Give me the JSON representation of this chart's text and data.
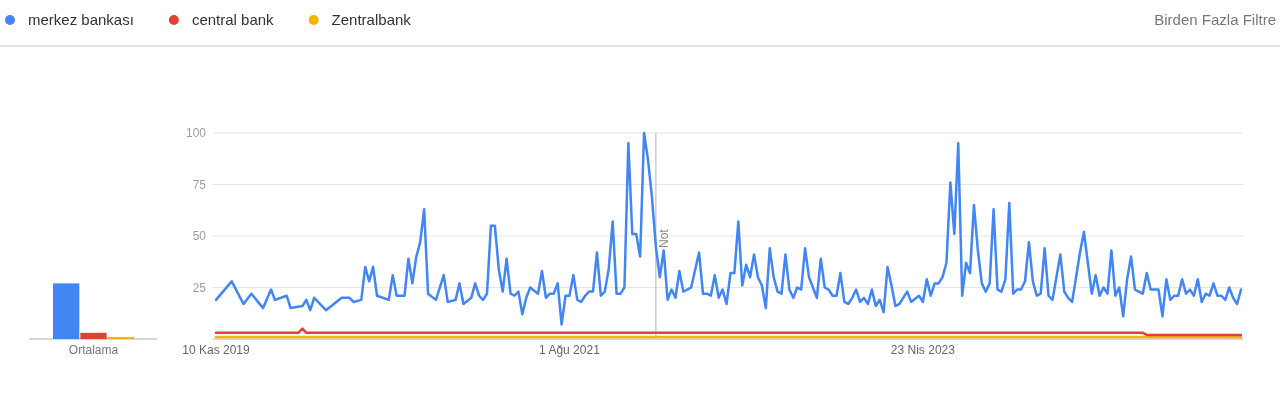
{
  "chart_data": [
    {
      "type": "bar",
      "categories": [
        "Ortalama"
      ],
      "ylim": [
        0,
        100
      ],
      "tick_labels": "x",
      "series": [
        {
          "color": "#4285f4",
          "values": [
            27
          ]
        },
        {
          "color": "#db4437",
          "values": [
            3
          ]
        },
        {
          "color": "#f4b400",
          "values": [
            1
          ]
        }
      ]
    },
    {
      "type": "line",
      "xlim": [
        "2019-11-10",
        "2024-11-10"
      ],
      "ylim": [
        0,
        100
      ],
      "xticks": [
        {
          "value": "2019-11-10",
          "label": "10 Kas 2019"
        },
        {
          "value": "2021-08-01",
          "label": "1 Ağu 2021"
        },
        {
          "value": "2023-04-23",
          "label": "23 Nis 2023"
        }
      ],
      "yticks": [
        25,
        50,
        75,
        100
      ],
      "grid": "y",
      "legend": "top",
      "ref_lines": [
        {
          "axis": "x",
          "value": "2022-01-02",
          "label": "Not",
          "color": "#cccccc"
        }
      ],
      "annotations": [
        "Birden Fazla Filtre"
      ],
      "series": [
        {
          "name": "merkez bankası",
          "color": "#4285f4",
          "x": [
            "2019-11-10",
            "2019-12-08",
            "2019-12-29",
            "2020-01-12",
            "2020-02-02",
            "2020-02-16",
            "2020-02-23",
            "2020-03-15",
            "2020-03-22",
            "2020-04-12",
            "2020-04-19",
            "2020-04-26",
            "2020-05-03",
            "2020-05-24",
            "2020-06-21",
            "2020-07-05",
            "2020-07-12",
            "2020-07-26",
            "2020-08-02",
            "2020-08-09",
            "2020-08-16",
            "2020-08-23",
            "2020-09-13",
            "2020-09-20",
            "2020-09-27",
            "2020-10-11",
            "2020-10-18",
            "2020-10-25",
            "2020-11-01",
            "2020-11-08",
            "2020-11-15",
            "2020-11-22",
            "2020-12-06",
            "2020-12-20",
            "2020-12-27",
            "2021-01-10",
            "2021-01-17",
            "2021-01-24",
            "2021-02-07",
            "2021-02-14",
            "2021-02-21",
            "2021-02-28",
            "2021-03-07",
            "2021-03-14",
            "2021-03-21",
            "2021-03-28",
            "2021-04-04",
            "2021-04-11",
            "2021-04-18",
            "2021-04-25",
            "2021-05-02",
            "2021-05-09",
            "2021-05-16",
            "2021-05-23",
            "2021-06-06",
            "2021-06-13",
            "2021-06-20",
            "2021-06-27",
            "2021-07-04",
            "2021-07-11",
            "2021-07-18",
            "2021-07-25",
            "2021-08-01",
            "2021-08-08",
            "2021-08-15",
            "2021-08-22",
            "2021-08-29",
            "2021-09-05",
            "2021-09-12",
            "2021-09-19",
            "2021-09-26",
            "2021-10-03",
            "2021-10-10",
            "2021-10-17",
            "2021-10-24",
            "2021-10-31",
            "2021-11-07",
            "2021-11-14",
            "2021-11-21",
            "2021-11-28",
            "2021-12-05",
            "2021-12-12",
            "2021-12-19",
            "2021-12-26",
            "2022-01-02",
            "2022-01-09",
            "2022-01-16",
            "2022-01-23",
            "2022-01-30",
            "2022-02-06",
            "2022-02-13",
            "2022-02-20",
            "2022-02-27",
            "2022-03-06",
            "2022-03-20",
            "2022-03-27",
            "2022-04-03",
            "2022-04-10",
            "2022-04-17",
            "2022-04-24",
            "2022-05-01",
            "2022-05-08",
            "2022-05-15",
            "2022-05-22",
            "2022-05-29",
            "2022-06-05",
            "2022-06-12",
            "2022-06-19",
            "2022-06-26",
            "2022-07-03",
            "2022-07-10",
            "2022-07-17",
            "2022-07-24",
            "2022-07-31",
            "2022-08-07",
            "2022-08-14",
            "2022-08-21",
            "2022-08-28",
            "2022-09-04",
            "2022-09-11",
            "2022-09-18",
            "2022-09-25",
            "2022-10-02",
            "2022-10-09",
            "2022-10-16",
            "2022-10-23",
            "2022-10-30",
            "2022-11-06",
            "2022-11-13",
            "2022-11-20",
            "2022-11-27",
            "2022-12-04",
            "2022-12-11",
            "2022-12-18",
            "2022-12-25",
            "2023-01-01",
            "2023-01-08",
            "2023-01-15",
            "2023-01-22",
            "2023-01-29",
            "2023-02-05",
            "2023-02-12",
            "2023-02-19",
            "2023-02-26",
            "2023-03-05",
            "2023-03-12",
            "2023-03-26",
            "2023-04-02",
            "2023-04-16",
            "2023-04-23",
            "2023-04-30",
            "2023-05-07",
            "2023-05-14",
            "2023-05-21",
            "2023-05-28",
            "2023-06-04",
            "2023-06-11",
            "2023-06-18",
            "2023-06-25",
            "2023-07-02",
            "2023-07-09",
            "2023-07-16",
            "2023-07-23",
            "2023-07-30",
            "2023-08-06",
            "2023-08-13",
            "2023-08-20",
            "2023-08-27",
            "2023-09-03",
            "2023-09-10",
            "2023-09-17",
            "2023-09-24",
            "2023-10-01",
            "2023-10-08",
            "2023-10-15",
            "2023-10-22",
            "2023-10-29",
            "2023-11-05",
            "2023-11-12",
            "2023-11-19",
            "2023-11-26",
            "2023-12-03",
            "2023-12-10",
            "2023-12-24",
            "2023-12-31",
            "2024-01-07",
            "2024-01-14",
            "2024-01-28",
            "2024-02-04",
            "2024-02-18",
            "2024-02-25",
            "2024-03-03",
            "2024-03-10",
            "2024-03-17",
            "2024-03-24",
            "2024-03-31",
            "2024-04-07",
            "2024-04-14",
            "2024-04-21",
            "2024-04-28",
            "2024-05-05",
            "2024-05-12",
            "2024-05-19",
            "2024-05-26",
            "2024-06-02",
            "2024-06-09",
            "2024-06-16",
            "2024-06-23",
            "2024-06-30",
            "2024-07-07",
            "2024-07-14",
            "2024-07-21",
            "2024-07-28",
            "2024-08-04",
            "2024-08-11",
            "2024-08-18",
            "2024-08-25",
            "2024-09-01",
            "2024-09-08",
            "2024-09-15",
            "2024-09-22",
            "2024-09-29",
            "2024-10-06",
            "2024-10-13",
            "2024-10-20",
            "2024-10-27",
            "2024-11-03",
            "2024-11-10"
          ],
          "values": [
            19,
            28,
            17,
            22,
            15,
            24,
            19,
            21,
            15,
            16,
            19,
            14,
            20,
            14,
            20,
            20,
            18,
            19,
            35,
            28,
            35,
            21,
            19,
            31,
            21,
            21,
            39,
            27,
            40,
            47,
            63,
            22,
            19,
            31,
            18,
            19,
            27,
            17,
            20,
            27,
            21,
            19,
            22,
            55,
            55,
            34,
            23,
            39,
            22,
            21,
            23,
            12,
            20,
            25,
            22,
            33,
            20,
            22,
            22,
            27,
            7,
            21,
            21,
            31,
            19,
            18,
            21,
            23,
            23,
            42,
            21,
            23,
            34,
            57,
            22,
            22,
            25,
            95,
            51,
            51,
            40,
            100,
            87,
            69,
            45,
            30,
            43,
            19,
            24,
            20,
            33,
            23,
            24,
            25,
            42,
            22,
            22,
            21,
            31,
            20,
            24,
            17,
            32,
            32,
            57,
            26,
            36,
            30,
            41,
            30,
            26,
            15,
            44,
            30,
            23,
            22,
            41,
            24,
            20,
            25,
            24,
            44,
            30,
            25,
            20,
            39,
            25,
            24,
            21,
            21,
            32,
            18,
            17,
            20,
            24,
            18,
            20,
            17,
            24,
            16,
            19,
            13,
            35,
            26,
            16,
            17,
            23,
            18,
            21,
            18,
            29,
            21,
            27,
            27,
            30,
            37,
            76,
            51,
            95,
            21,
            37,
            32,
            65,
            43,
            27,
            23,
            27,
            63,
            24,
            23,
            29,
            66,
            22,
            24,
            24,
            28,
            47,
            28,
            21,
            22,
            44,
            21,
            19,
            41,
            23,
            20,
            18,
            42,
            52,
            22,
            31,
            21,
            25,
            22,
            43,
            21,
            25,
            11,
            29,
            40,
            24,
            23,
            22,
            32,
            24,
            24,
            24,
            11,
            29,
            19,
            21,
            21,
            29,
            22,
            24,
            21,
            29,
            18,
            22,
            21,
            27,
            21,
            21,
            19,
            25,
            20,
            17,
            24
          ]
        },
        {
          "name": "central bank",
          "color": "#db4437",
          "x": [
            "2019-11-10",
            "2020-04-05",
            "2020-04-12",
            "2020-04-19",
            "2024-05-19",
            "2024-05-26",
            "2024-11-10"
          ],
          "values": [
            3,
            3,
            5,
            3,
            3,
            2,
            2
          ]
        },
        {
          "name": "Zentralbank",
          "color": "#f4b400",
          "x": [
            "2019-11-10",
            "2024-11-10"
          ],
          "values": [
            1,
            1
          ]
        }
      ]
    }
  ]
}
